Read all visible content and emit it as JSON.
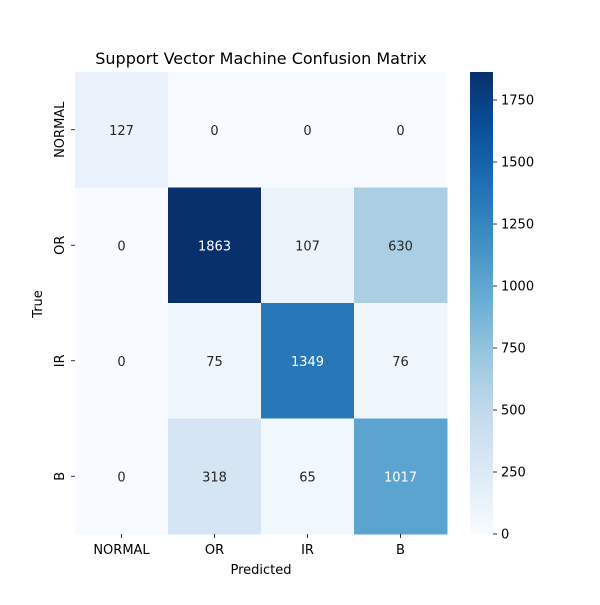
{
  "chart_data": {
    "type": "heatmap",
    "title": "Support Vector Machine Confusion Matrix",
    "xlabel": "Predicted",
    "ylabel": "True",
    "x_categories": [
      "NORMAL",
      "OR",
      "IR",
      "B"
    ],
    "y_categories": [
      "NORMAL",
      "OR",
      "IR",
      "B"
    ],
    "values": [
      [
        127,
        0,
        0,
        0
      ],
      [
        0,
        1863,
        107,
        630
      ],
      [
        0,
        75,
        1349,
        76
      ],
      [
        0,
        318,
        65,
        1017
      ]
    ],
    "colorbar": {
      "min": 0,
      "max": 1863,
      "ticks": [
        0,
        250,
        500,
        750,
        1000,
        1250,
        1500,
        1750
      ]
    },
    "colormap": "Blues",
    "annotations": true
  }
}
